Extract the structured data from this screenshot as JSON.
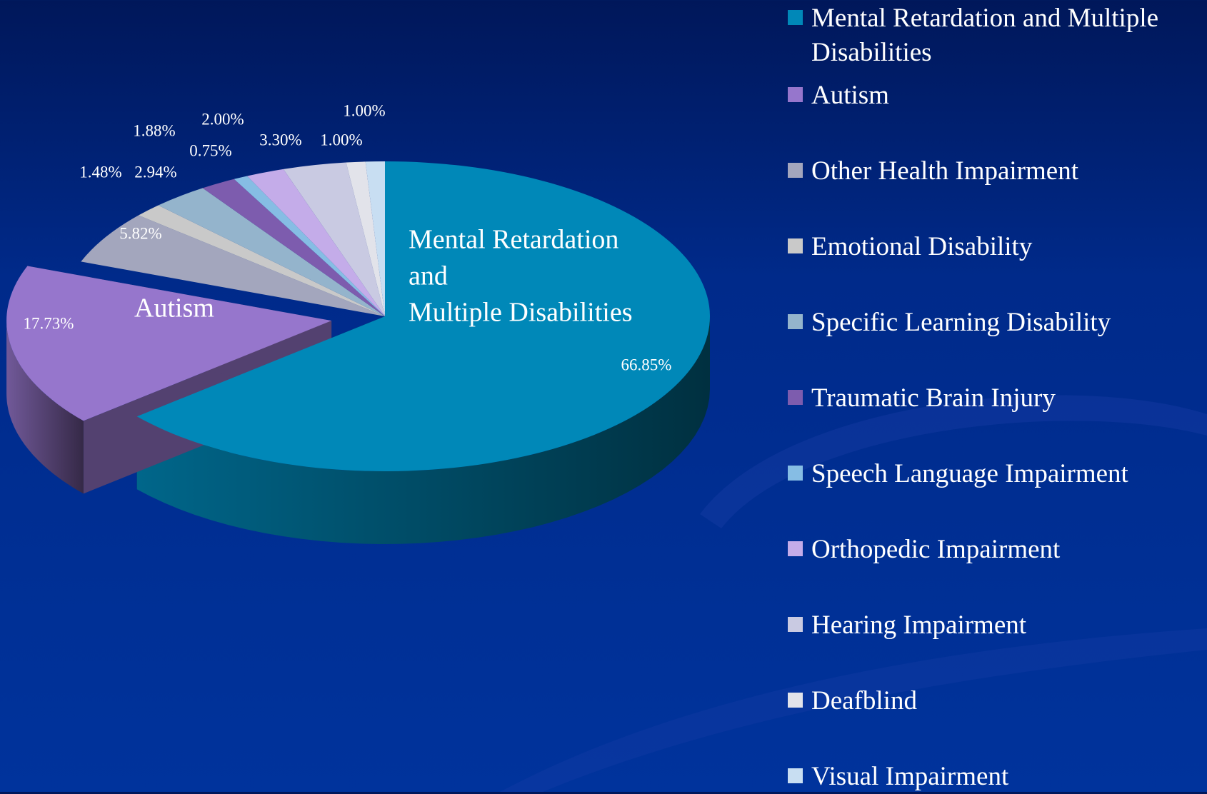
{
  "chart_data": {
    "type": "pie",
    "categories": [
      "Mental Retardation and Multiple Disabilities",
      "Autism",
      "Other Health Impairment",
      "Emotional Disability",
      "Specific Learning Disability",
      "Traumatic Brain Injury",
      "Speech Language Impairment",
      "Orthopedic Impairment",
      "Hearing Impairment",
      "Deafblind",
      "Visual Impairment"
    ],
    "values": [
      66.85,
      17.73,
      5.82,
      1.48,
      2.94,
      1.88,
      0.75,
      2.0,
      3.3,
      1.0,
      1.0
    ],
    "value_labels": [
      "66.85%",
      "17.73%",
      "5.82%",
      "1.48%",
      "2.94%",
      "1.88%",
      "0.75%",
      "2.00%",
      "3.30%",
      "1.00%",
      "1.00%"
    ],
    "colors": [
      "#0088b8",
      "#9676cc",
      "#a3a6bd",
      "#c9c9c9",
      "#94b4cc",
      "#7d5cae",
      "#86bde4",
      "#c4ace9",
      "#c9cae2",
      "#e2e3ea",
      "#c8def2"
    ],
    "annotations": [
      [
        "Mental Retardation",
        "and",
        "Multiple Disabilities"
      ],
      [
        "Autism"
      ]
    ],
    "legend": "right"
  }
}
